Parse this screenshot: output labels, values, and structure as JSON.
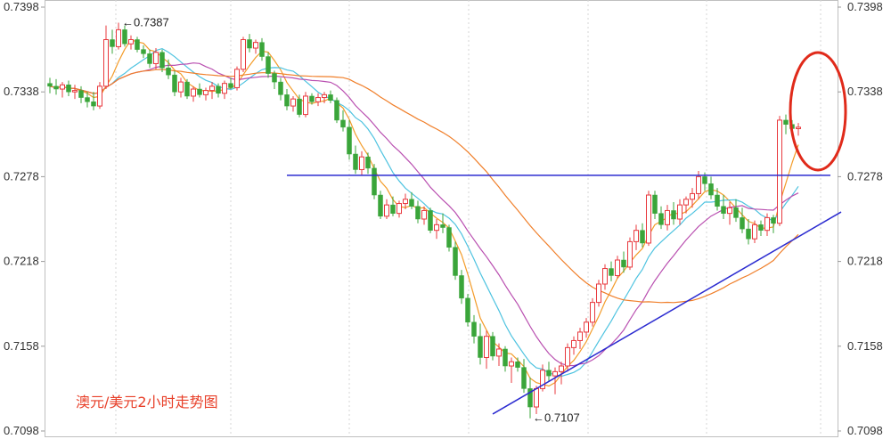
{
  "chart_data": {
    "type": "candlestick",
    "title": "澳元/美元2小时走势图",
    "y_ticks": [
      "0.7398",
      "0.7338",
      "0.7278",
      "0.7218",
      "0.7158",
      "0.7098"
    ],
    "ylim": [
      0.7098,
      0.7398
    ],
    "annotations": {
      "high": "←0.7387",
      "low": "←0.7107"
    },
    "colors": {
      "up": "#e8383d",
      "down": "#3aa53a",
      "ma_orange": "#f39c2a",
      "ma_cyan": "#4ec3e0",
      "ma_magenta": "#b94fb0",
      "ma_long": "#f07f2a",
      "trendline": "#2b2bd0",
      "circle": "#e02a1a"
    },
    "candles": [
      [
        0.7344,
        0.7348,
        0.7337,
        0.7342
      ],
      [
        0.7342,
        0.7347,
        0.7336,
        0.734
      ],
      [
        0.734,
        0.7345,
        0.7334,
        0.7343
      ],
      [
        0.7343,
        0.7346,
        0.7335,
        0.7338
      ],
      [
        0.7338,
        0.7343,
        0.7333,
        0.7339
      ],
      [
        0.7339,
        0.7342,
        0.733,
        0.7334
      ],
      [
        0.7334,
        0.7338,
        0.7327,
        0.7331
      ],
      [
        0.7331,
        0.7338,
        0.7325,
        0.7328
      ],
      [
        0.7328,
        0.7345,
        0.7326,
        0.7342
      ],
      [
        0.7342,
        0.7385,
        0.734,
        0.7375
      ],
      [
        0.7375,
        0.7382,
        0.7365,
        0.737
      ],
      [
        0.737,
        0.7387,
        0.7368,
        0.7382
      ],
      [
        0.7382,
        0.7385,
        0.737,
        0.7372
      ],
      [
        0.7372,
        0.7378,
        0.7368,
        0.7375
      ],
      [
        0.7375,
        0.7377,
        0.7366,
        0.7368
      ],
      [
        0.7368,
        0.7371,
        0.7362,
        0.7365
      ],
      [
        0.7365,
        0.7368,
        0.7355,
        0.7358
      ],
      [
        0.7358,
        0.7369,
        0.7354,
        0.7366
      ],
      [
        0.7366,
        0.7368,
        0.7352,
        0.7355
      ],
      [
        0.7355,
        0.7361,
        0.7347,
        0.735
      ],
      [
        0.735,
        0.7353,
        0.7335,
        0.7338
      ],
      [
        0.7338,
        0.7348,
        0.7334,
        0.7345
      ],
      [
        0.7345,
        0.7347,
        0.7333,
        0.7335
      ],
      [
        0.7335,
        0.7342,
        0.7331,
        0.734
      ],
      [
        0.734,
        0.7344,
        0.7334,
        0.7336
      ],
      [
        0.7336,
        0.7341,
        0.7332,
        0.7339
      ],
      [
        0.7339,
        0.7345,
        0.7333,
        0.7342
      ],
      [
        0.7342,
        0.7344,
        0.7334,
        0.7337
      ],
      [
        0.7337,
        0.7346,
        0.7333,
        0.7344
      ],
      [
        0.7344,
        0.7348,
        0.734,
        0.7341
      ],
      [
        0.7341,
        0.7356,
        0.7339,
        0.7354
      ],
      [
        0.7354,
        0.7377,
        0.7352,
        0.7375
      ],
      [
        0.7375,
        0.7379,
        0.7366,
        0.7369
      ],
      [
        0.7369,
        0.7375,
        0.7365,
        0.7373
      ],
      [
        0.7373,
        0.7376,
        0.736,
        0.7363
      ],
      [
        0.7363,
        0.7366,
        0.7348,
        0.7351
      ],
      [
        0.7351,
        0.7353,
        0.734,
        0.7345
      ],
      [
        0.7345,
        0.7348,
        0.7332,
        0.7336
      ],
      [
        0.7336,
        0.734,
        0.7325,
        0.7328
      ],
      [
        0.7328,
        0.7335,
        0.7324,
        0.7333
      ],
      [
        0.7333,
        0.7336,
        0.732,
        0.7322
      ],
      [
        0.7322,
        0.7338,
        0.732,
        0.7335
      ],
      [
        0.7335,
        0.7337,
        0.7329,
        0.7331
      ],
      [
        0.7331,
        0.7337,
        0.7328,
        0.7334
      ],
      [
        0.7334,
        0.7338,
        0.733,
        0.7336
      ],
      [
        0.7336,
        0.7339,
        0.733,
        0.7332
      ],
      [
        0.7332,
        0.7334,
        0.7316,
        0.7318
      ],
      [
        0.7318,
        0.7325,
        0.731,
        0.7313
      ],
      [
        0.7313,
        0.7318,
        0.729,
        0.7294
      ],
      [
        0.7294,
        0.73,
        0.728,
        0.7283
      ],
      [
        0.7283,
        0.7296,
        0.7279,
        0.7292
      ],
      [
        0.7292,
        0.7295,
        0.728,
        0.7284
      ],
      [
        0.7284,
        0.7287,
        0.7262,
        0.7265
      ],
      [
        0.7265,
        0.7268,
        0.7248,
        0.725
      ],
      [
        0.725,
        0.7262,
        0.7248,
        0.7258
      ],
      [
        0.7258,
        0.7264,
        0.725,
        0.7252
      ],
      [
        0.7252,
        0.7261,
        0.7249,
        0.7259
      ],
      [
        0.7259,
        0.7266,
        0.7255,
        0.7262
      ],
      [
        0.7262,
        0.7267,
        0.7255,
        0.7257
      ],
      [
        0.7257,
        0.7261,
        0.7245,
        0.7248
      ],
      [
        0.7248,
        0.7257,
        0.7244,
        0.7254
      ],
      [
        0.7254,
        0.7256,
        0.7238,
        0.724
      ],
      [
        0.724,
        0.7248,
        0.7234,
        0.7244
      ],
      [
        0.7244,
        0.7252,
        0.7238,
        0.7242
      ],
      [
        0.7242,
        0.7244,
        0.7225,
        0.7228
      ],
      [
        0.7228,
        0.7232,
        0.7205,
        0.7208
      ],
      [
        0.7208,
        0.7212,
        0.7188,
        0.7192
      ],
      [
        0.7192,
        0.7195,
        0.7172,
        0.7175
      ],
      [
        0.7175,
        0.718,
        0.716,
        0.7165
      ],
      [
        0.7165,
        0.7174,
        0.7145,
        0.715
      ],
      [
        0.715,
        0.7169,
        0.7142,
        0.7165
      ],
      [
        0.7165,
        0.7168,
        0.7148,
        0.7151
      ],
      [
        0.7151,
        0.716,
        0.7144,
        0.7156
      ],
      [
        0.7156,
        0.7158,
        0.714,
        0.7144
      ],
      [
        0.7144,
        0.715,
        0.7132,
        0.7147
      ],
      [
        0.7147,
        0.715,
        0.714,
        0.7143
      ],
      [
        0.7143,
        0.7149,
        0.7125,
        0.7128
      ],
      [
        0.7128,
        0.7136,
        0.7107,
        0.7115
      ],
      [
        0.7115,
        0.713,
        0.711,
        0.7128
      ],
      [
        0.7128,
        0.7145,
        0.7126,
        0.7141
      ],
      [
        0.7141,
        0.7147,
        0.7133,
        0.7137
      ],
      [
        0.7137,
        0.7143,
        0.7124,
        0.714
      ],
      [
        0.714,
        0.7147,
        0.7131,
        0.7144
      ],
      [
        0.7144,
        0.716,
        0.714,
        0.7157
      ],
      [
        0.7157,
        0.7165,
        0.7152,
        0.7162
      ],
      [
        0.7162,
        0.7171,
        0.7156,
        0.7168
      ],
      [
        0.7168,
        0.7178,
        0.7164,
        0.7175
      ],
      [
        0.7175,
        0.7192,
        0.7172,
        0.7189
      ],
      [
        0.7189,
        0.7205,
        0.7186,
        0.7202
      ],
      [
        0.7202,
        0.7216,
        0.7198,
        0.7213
      ],
      [
        0.7213,
        0.7218,
        0.7204,
        0.7208
      ],
      [
        0.7208,
        0.7222,
        0.7206,
        0.7219
      ],
      [
        0.7219,
        0.7225,
        0.721,
        0.7214
      ],
      [
        0.7214,
        0.7235,
        0.7212,
        0.7232
      ],
      [
        0.7232,
        0.7244,
        0.7226,
        0.724
      ],
      [
        0.724,
        0.7245,
        0.7228,
        0.7231
      ],
      [
        0.7231,
        0.7268,
        0.7229,
        0.7265
      ],
      [
        0.7265,
        0.7268,
        0.7248,
        0.7252
      ],
      [
        0.7252,
        0.7257,
        0.7241,
        0.7244
      ],
      [
        0.7244,
        0.7258,
        0.724,
        0.7254
      ],
      [
        0.7254,
        0.726,
        0.7244,
        0.7248
      ],
      [
        0.7248,
        0.7262,
        0.7244,
        0.7258
      ],
      [
        0.7258,
        0.7264,
        0.7252,
        0.7262
      ],
      [
        0.7262,
        0.727,
        0.7256,
        0.7266
      ],
      [
        0.7266,
        0.7282,
        0.7262,
        0.7278
      ],
      [
        0.7278,
        0.7281,
        0.7268,
        0.7273
      ],
      [
        0.7273,
        0.7278,
        0.7262,
        0.7265
      ],
      [
        0.7265,
        0.727,
        0.7254,
        0.7257
      ],
      [
        0.7257,
        0.7265,
        0.7248,
        0.7252
      ],
      [
        0.7252,
        0.726,
        0.7244,
        0.7256
      ],
      [
        0.7256,
        0.7262,
        0.7246,
        0.7249
      ],
      [
        0.7249,
        0.7256,
        0.7238,
        0.7241
      ],
      [
        0.7241,
        0.7248,
        0.723,
        0.7234
      ],
      [
        0.7234,
        0.7247,
        0.7231,
        0.7244
      ],
      [
        0.7244,
        0.7247,
        0.7236,
        0.724
      ],
      [
        0.724,
        0.7252,
        0.7236,
        0.7249
      ],
      [
        0.7249,
        0.7251,
        0.7238,
        0.7245
      ],
      [
        0.7245,
        0.7321,
        0.7243,
        0.7318
      ],
      [
        0.7318,
        0.7322,
        0.7308,
        0.7315
      ],
      [
        0.7315,
        0.7318,
        0.7308,
        0.7312
      ],
      [
        0.7312,
        0.7316,
        0.7307,
        0.7313
      ]
    ]
  }
}
